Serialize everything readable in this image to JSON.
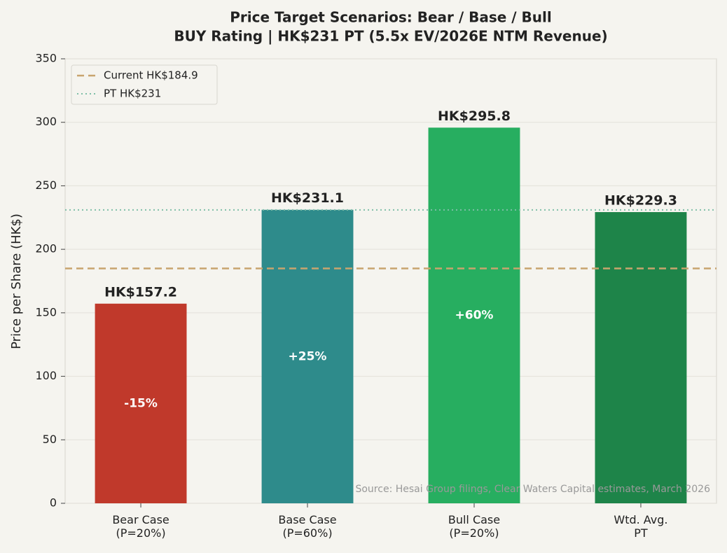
{
  "chart_data": {
    "type": "bar",
    "title": "Price Target Scenarios: Bear / Base / Bull",
    "subtitle": "BUY Rating | HK$231 PT (5.5x EV/2026E NTM Revenue)",
    "y_label": "Price per Share (HK$)",
    "categories": [
      "Bear Case\n(P=20%)",
      "Base Case\n(P=60%)",
      "Bull Case\n(P=20%)",
      "Wtd. Avg.\nPT"
    ],
    "values": [
      157.2,
      231.1,
      295.8,
      229.3
    ],
    "value_labels": [
      "HK$157.2",
      "HK$231.1",
      "HK$295.8",
      "HK$229.3"
    ],
    "bar_annotations": [
      "-15%",
      "+25%",
      "+60%",
      null
    ],
    "colors": [
      "#c0392b",
      "#2e8b8b",
      "#27ae60",
      "#1e8449"
    ],
    "reference_lines": [
      {
        "name": "Current HK$184.9",
        "value": 184.9,
        "color": "#c8a46e",
        "style": "dashed"
      },
      {
        "name": "PT HK$231",
        "value": 231,
        "color": "#7fbfa8",
        "style": "dotted"
      }
    ],
    "ylim": [
      0,
      350
    ],
    "yticks": [
      0,
      50,
      100,
      150,
      200,
      250,
      300,
      350
    ],
    "grid": true,
    "legend_position": "upper-left",
    "source": "Source: Hesai Group filings, Clear Waters Capital estimates, March 2026"
  }
}
